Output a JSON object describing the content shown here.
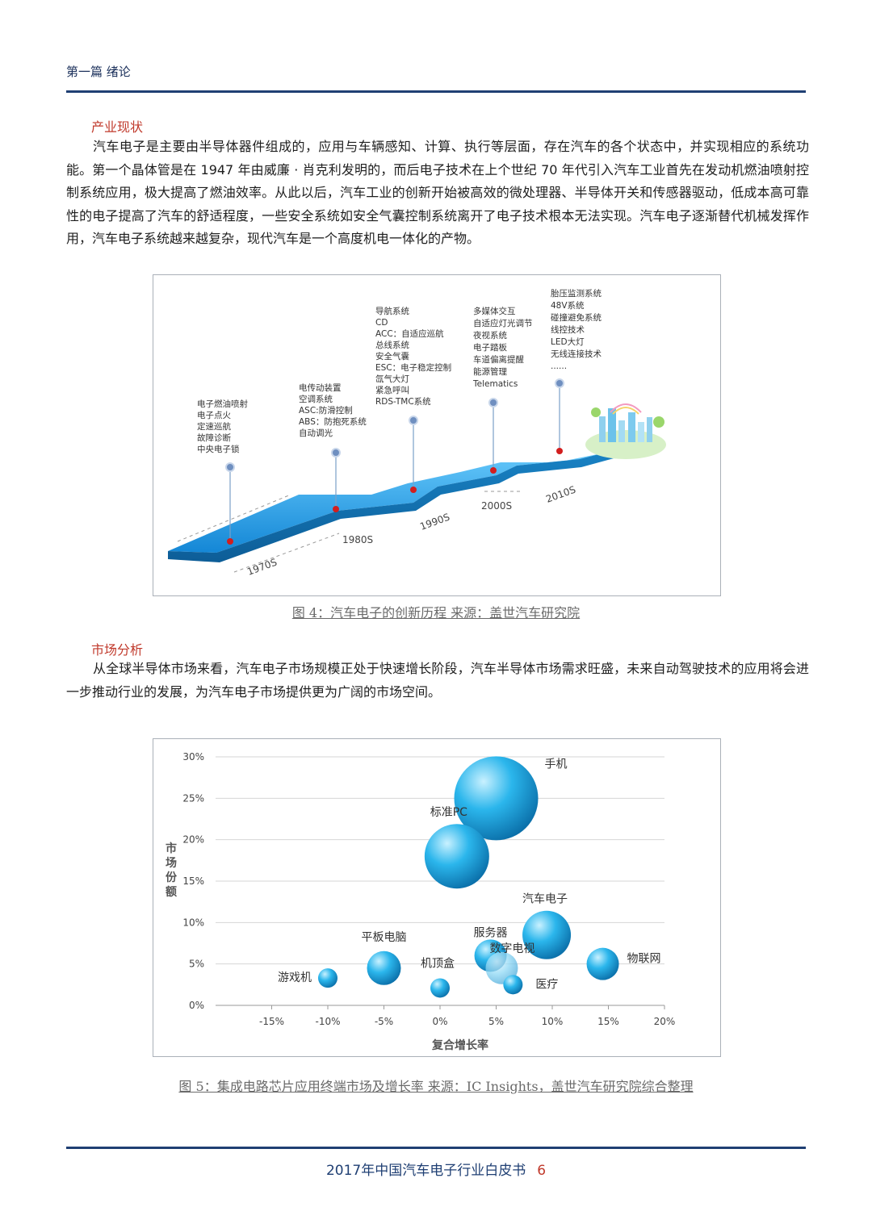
{
  "header": {
    "title": "第一篇 绪论"
  },
  "section1": {
    "title": "产业现状",
    "paragraph": "汽车电子是主要由半导体器件组成的，应用与车辆感知、计算、执行等层面，存在汽车的各个状态中，并实现相应的系统功能。第一个晶体管是在 1947 年由威廉 · 肖克利发明的，而后电子技术在上个世纪 70 年代引入汽车工业首先在发动机燃油喷射控制系统应用，极大提高了燃油效率。从此以后，汽车工业的创新开始被高效的微处理器、半导体开关和传感器驱动，低成本高可靠性的电子提高了汽车的舒适程度，一些安全系统如安全气囊控制系统离开了电子技术根本无法实现。汽车电子逐渐替代机械发挥作用，汽车电子系统越来越复杂，现代汽车是一个高度机电一体化的产物。"
  },
  "figure4": {
    "caption": "图 4：汽车电子的创新历程  来源：盖世汽车研究院",
    "eras": [
      {
        "label": "1970S",
        "items": [
          "电子燃油喷射",
          "电子点火",
          "定速巡航",
          "故障诊断",
          "中央电子锁"
        ]
      },
      {
        "label": "1980S",
        "items": [
          "电传动装置",
          "空调系统",
          "ASC:防滑控制",
          "ABS：防抱死系统",
          "自动调光"
        ]
      },
      {
        "label": "1990S",
        "items": [
          "导航系统",
          "CD",
          "ACC：自适应巡航",
          "总线系统",
          "安全气囊",
          "ESC：电子稳定控制",
          "氙气大灯",
          "紧急呼叫",
          "RDS-TMC系统"
        ]
      },
      {
        "label": "2000S",
        "items": [
          "多媒体交互",
          "自适应灯光调节",
          "夜视系统",
          "电子踏板",
          "车道偏离提醒",
          "能源管理",
          "Telematics"
        ]
      },
      {
        "label": "2010S",
        "items": [
          "胎压监测系统",
          "48V系统",
          "碰撞避免系统",
          "线控技术",
          "LED大灯",
          "无线连接技术",
          "......"
        ]
      }
    ]
  },
  "section2": {
    "title": "市场分析",
    "paragraph": "从全球半导体市场来看，汽车电子市场规模正处于快速增长阶段，汽车半导体市场需求旺盛，未来自动驾驶技术的应用将会进一步推动行业的发展，为汽车电子市场提供更为广阔的市场空间。"
  },
  "figure5": {
    "caption": "图 5：集成电路芯片应用终端市场及增长率  来源：IC Insights，盖世汽车研究院综合整理"
  },
  "chart_data": {
    "type": "scatter",
    "subtype": "bubble",
    "xlabel": "复合增长率",
    "ylabel": "市场份额",
    "xlim": [
      -0.2,
      0.2
    ],
    "ylim": [
      0,
      0.3
    ],
    "x_ticks": [
      "-15%",
      "-10%",
      "-5%",
      "0%",
      "5%",
      "10%",
      "15%",
      "20%"
    ],
    "y_ticks": [
      "0%",
      "5%",
      "10%",
      "15%",
      "20%",
      "25%",
      "30%"
    ],
    "grid": true,
    "points": [
      {
        "name": "手机",
        "x": 0.05,
        "y": 0.25,
        "size": 52
      },
      {
        "name": "标准PC",
        "x": 0.015,
        "y": 0.18,
        "size": 40
      },
      {
        "name": "汽车电子",
        "x": 0.095,
        "y": 0.085,
        "size": 30
      },
      {
        "name": "服务器",
        "x": 0.045,
        "y": 0.06,
        "size": 20
      },
      {
        "name": "数字电视",
        "x": 0.055,
        "y": 0.045,
        "size": 20
      },
      {
        "name": "物联网",
        "x": 0.145,
        "y": 0.05,
        "size": 20
      },
      {
        "name": "平板电脑",
        "x": -0.05,
        "y": 0.045,
        "size": 21
      },
      {
        "name": "游戏机",
        "x": -0.1,
        "y": 0.033,
        "size": 12
      },
      {
        "name": "机顶盒",
        "x": 0.0,
        "y": 0.021,
        "size": 12
      },
      {
        "name": "医疗",
        "x": 0.065,
        "y": 0.025,
        "size": 12
      }
    ]
  },
  "footer": {
    "title": "2017年中国汽车电子行业白皮书",
    "page": "6"
  },
  "colors": {
    "accent_red": "#c0392b",
    "navy": "#1f3f73",
    "bubble": "#1fa6e0"
  }
}
